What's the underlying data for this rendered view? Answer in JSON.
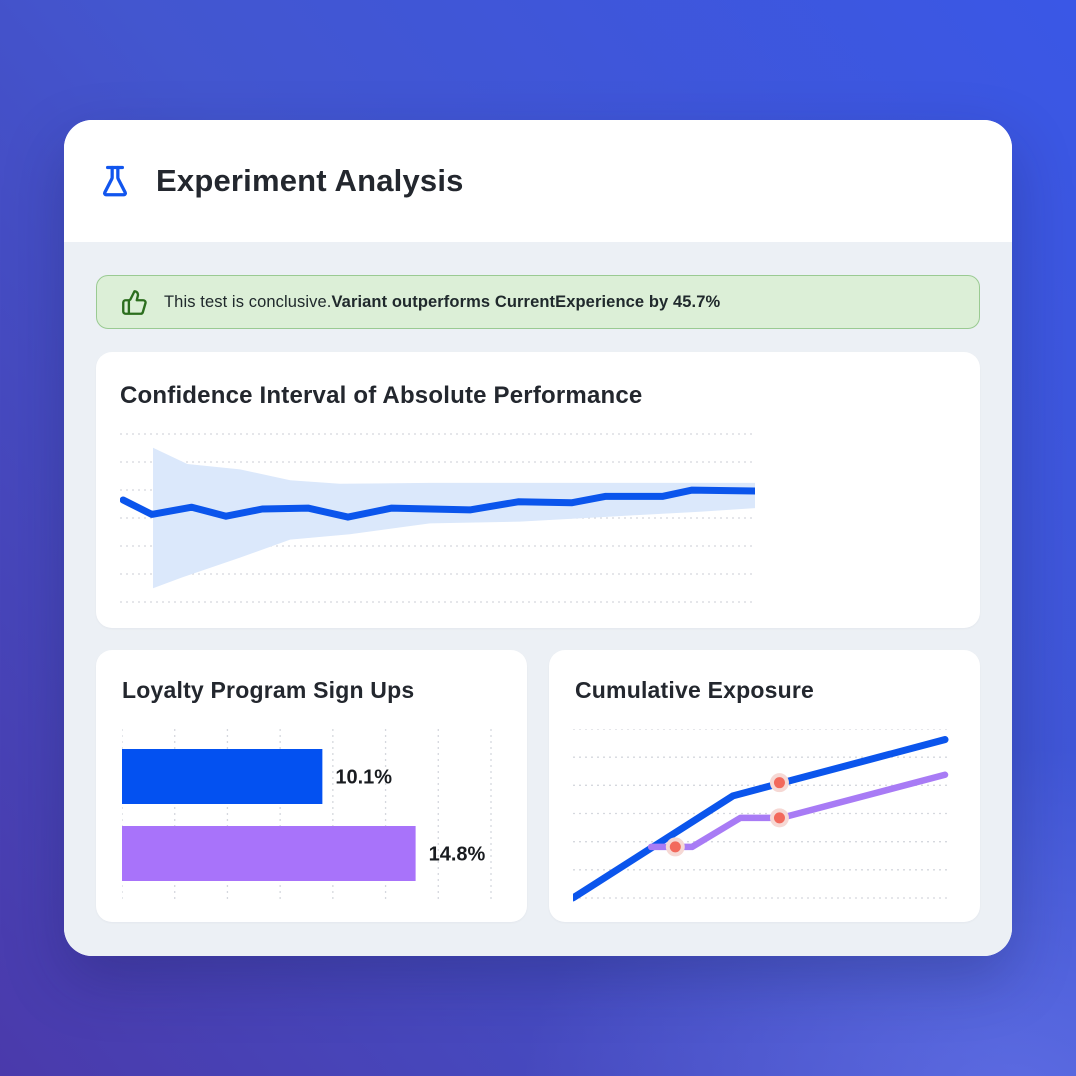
{
  "header": {
    "title": "Experiment Analysis",
    "icon": "flask-icon"
  },
  "banner": {
    "icon": "thumbs-up-icon",
    "text_regular": "This test is conclusive.",
    "text_bold": "Variant outperforms CurrentExperience by 45.7%",
    "background": "#dcefd7",
    "border_color": "#9aca92",
    "icon_color": "#2c6e1e"
  },
  "colors": {
    "page_gradient_bottom_left": "#4a3aab",
    "page_gradient_top_right": "#3a57e6",
    "body_background": "#ecf0f5",
    "card_background": "#ffffff",
    "heading_text": "#23272e",
    "accent_blue": "#0b55ec",
    "accent_purple": "#a873fa",
    "marker_red": "#f2695c",
    "gridline": "#d5d8de"
  },
  "chart_data": [
    {
      "type": "area",
      "title": "Confidence Interval of Absolute Performance",
      "xlabel": "",
      "ylabel": "",
      "x_range": [
        0,
        100
      ],
      "y_range": [
        0,
        100
      ],
      "grid": "horizontal-dotted",
      "gridline_count": 7,
      "gridline_color": "#d5d8de",
      "legend": "none",
      "series": [
        {
          "name": "estimate",
          "color": "#0b55ec",
          "width": 7,
          "points": [
            [
              0.5,
              60
            ],
            [
              5,
              52
            ],
            [
              11.3,
              56
            ],
            [
              16.7,
              51
            ],
            [
              22.4,
              55
            ],
            [
              29.6,
              55.5
            ],
            [
              35.9,
              50.5
            ],
            [
              42.8,
              55.5
            ],
            [
              55.1,
              54.5
            ],
            [
              62.7,
              59
            ],
            [
              71.2,
              58.5
            ],
            [
              76.4,
              62
            ],
            [
              85.4,
              62
            ],
            [
              90.1,
              65.5
            ],
            [
              100,
              65
            ]
          ]
        }
      ],
      "band": {
        "name": "confidence-band",
        "color": "#dbe8fb",
        "upper": [
          [
            5.2,
            89
          ],
          [
            10.6,
            80
          ],
          [
            18.9,
            77
          ],
          [
            26.8,
            71
          ],
          [
            34.6,
            69
          ],
          [
            48.8,
            69.5
          ],
          [
            100,
            69.5
          ]
        ],
        "lower": [
          [
            5.2,
            11
          ],
          [
            9.8,
            17
          ],
          [
            18.9,
            28
          ],
          [
            26.8,
            38
          ],
          [
            36.2,
            41
          ],
          [
            48.8,
            47
          ],
          [
            63,
            48
          ],
          [
            78.3,
            51
          ],
          [
            91.3,
            53.5
          ],
          [
            100,
            55.5
          ]
        ]
      }
    },
    {
      "type": "bar",
      "orientation": "horizontal",
      "title": "Loyalty Program Sign Ups",
      "xlabel": "",
      "ylabel": "",
      "x_max": 18.6,
      "grid": "vertical-dotted",
      "gridline_count": 8,
      "gridline_color": "#d5d8de",
      "bars": [
        {
          "value": 10.1,
          "label": "10.1%",
          "color": "#0351f1"
        },
        {
          "value": 14.8,
          "label": "14.8%",
          "color": "#a873fa"
        }
      ],
      "label_color": "#191c20"
    },
    {
      "type": "line",
      "title": "Cumulative Exposure",
      "xlabel": "",
      "ylabel": "",
      "x_range": [
        0,
        100
      ],
      "y_range": [
        0,
        100
      ],
      "grid": "horizontal-dotted",
      "gridline_count": 7,
      "gridline_color": "#d5d8de",
      "legend": "none",
      "series": [
        {
          "name": "variant-exposure",
          "color": "#0b55ec",
          "width": 7,
          "points": [
            [
              0,
              4
            ],
            [
              43,
              62
            ],
            [
              100,
              94
            ]
          ]
        },
        {
          "name": "current-exposure",
          "color": "#a87bf5",
          "width": 6.5,
          "points": [
            [
              21,
              33
            ],
            [
              32,
              33
            ],
            [
              45,
              49.5
            ],
            [
              56,
              49.5
            ],
            [
              100,
              74
            ]
          ]
        }
      ],
      "markers": {
        "name": "milestone-markers",
        "color": "#f2695c",
        "halo_color": "#f6d8d4",
        "points": [
          [
            27.5,
            33
          ],
          [
            55.5,
            69.5
          ],
          [
            55.5,
            49.5
          ]
        ]
      }
    }
  ]
}
